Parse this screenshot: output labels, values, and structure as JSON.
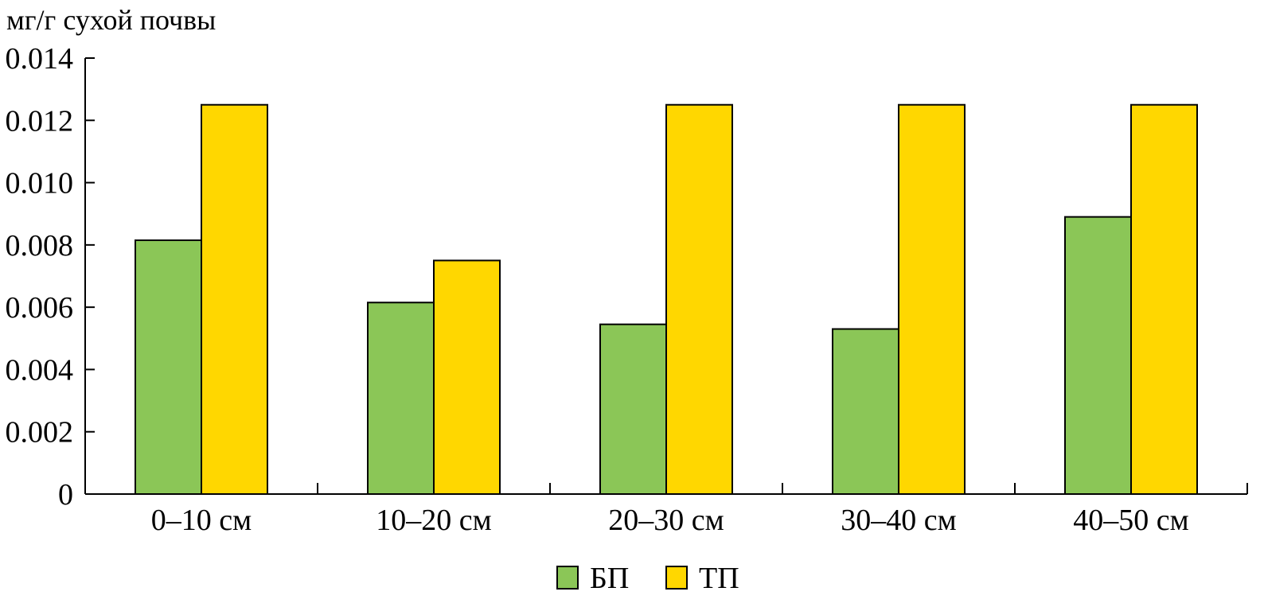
{
  "chart_data": {
    "type": "bar",
    "ylabel": "мг/г сухой почвы",
    "xlabel": "",
    "ylim": [
      0,
      0.014
    ],
    "yticks": [
      "0",
      "0.002",
      "0.004",
      "0.006",
      "0.008",
      "0.010",
      "0.012",
      "0.014"
    ],
    "categories": [
      "0–10 см",
      "10–20 см",
      "20–30 см",
      "30–40 см",
      "40–50 см"
    ],
    "series": [
      {
        "name": "БП",
        "color": "#8bc657",
        "values": [
          0.00815,
          0.00615,
          0.00545,
          0.0053,
          0.0089
        ]
      },
      {
        "name": "ТП",
        "color": "#ffd700",
        "values": [
          0.0125,
          0.0075,
          0.0125,
          0.0125,
          0.0125
        ]
      }
    ],
    "legend": "bottom-center",
    "grid": false
  }
}
